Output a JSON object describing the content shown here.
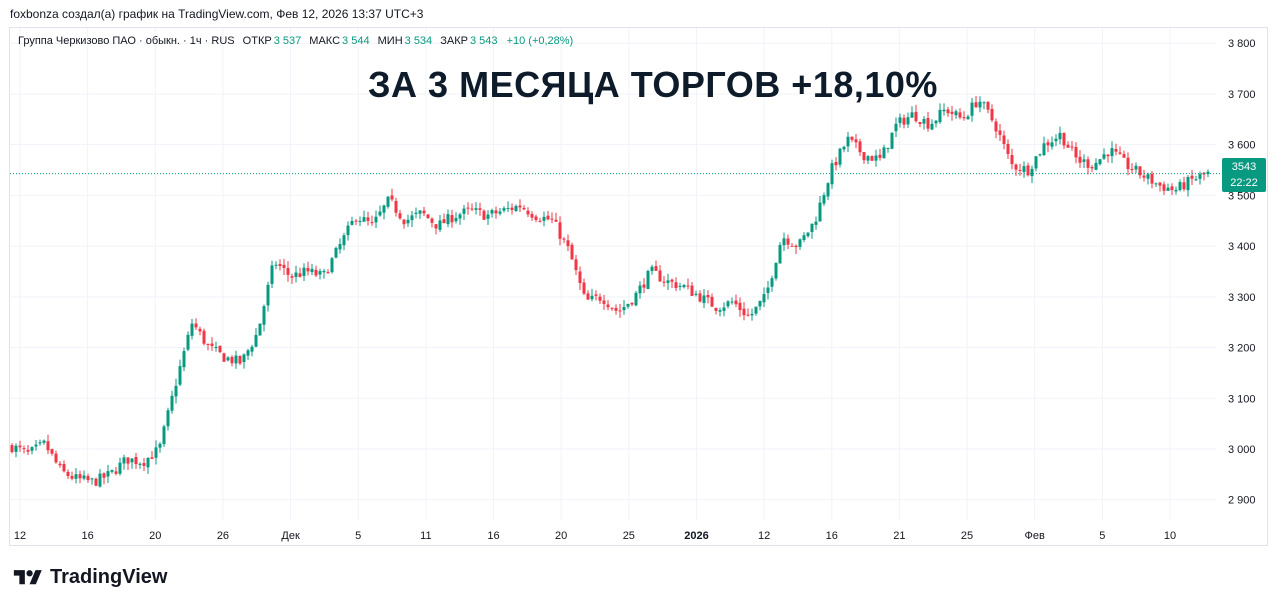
{
  "header": {
    "credit": "foxbonza создал(а) график на TradingView.com, Фев 12, 2026 13:37 UTC+3"
  },
  "legend": {
    "symbol": "Группа Черкизово ПАО · обыкн. · 1ч · RUS",
    "open_label": "ОТКР",
    "open_value": "3 537",
    "high_label": "МАКС",
    "high_value": "3 544",
    "low_label": "МИН",
    "low_value": "3 534",
    "close_label": "ЗАКР",
    "close_value": "3 543",
    "change": "+10 (+0,28%)"
  },
  "headline": "ЗА 3 МЕСЯЦА ТОРГОВ +18,10%",
  "price_badge": {
    "price": "3543",
    "timer": "22:22"
  },
  "brand": {
    "name": "TradingView"
  },
  "colors": {
    "up": "#089981",
    "down": "#f23645",
    "grid": "#f0f3fa",
    "last_price_line": "#089981"
  },
  "chart_data": {
    "type": "candlestick",
    "y_ticks": [
      2900,
      3000,
      3100,
      3200,
      3300,
      3400,
      3500,
      3600,
      3700,
      3800
    ],
    "y_tick_labels": [
      "2 900",
      "3 000",
      "3 100",
      "3 200",
      "3 300",
      "3 400",
      "3 500",
      "3 600",
      "3 700",
      "3 800"
    ],
    "ylim": [
      2860,
      3830
    ],
    "x_ticks": [
      "12",
      "16",
      "20",
      "26",
      "Дек",
      "5",
      "11",
      "16",
      "20",
      "25",
      "2026",
      "12",
      "16",
      "21",
      "25",
      "Фев",
      "5",
      "10"
    ],
    "bold_x_ticks": [
      "2026"
    ],
    "last_price": 3543,
    "grid": true,
    "series": [
      {
        "values": [
          3005,
          2990,
          3010,
          2955,
          2940,
          2935,
          2950,
          2980,
          2975,
          3000,
          3130,
          3250,
          3200,
          3180,
          3170,
          3230,
          3370,
          3340,
          3350,
          3340,
          3400,
          3460,
          3440,
          3490,
          3450,
          3465,
          3440,
          3460,
          3470,
          3460,
          3470,
          3480,
          3460,
          3450,
          3390,
          3290,
          3300,
          3270,
          3300,
          3350,
          3330,
          3320,
          3300,
          3280,
          3290,
          3260,
          3300,
          3420,
          3400,
          3450,
          3550,
          3610,
          3580,
          3570,
          3640,
          3660,
          3640,
          3670,
          3650,
          3690,
          3640,
          3560,
          3550,
          3600,
          3620,
          3570,
          3560,
          3590,
          3560,
          3540,
          3520,
          3510,
          3530,
          3543
        ]
      }
    ]
  }
}
